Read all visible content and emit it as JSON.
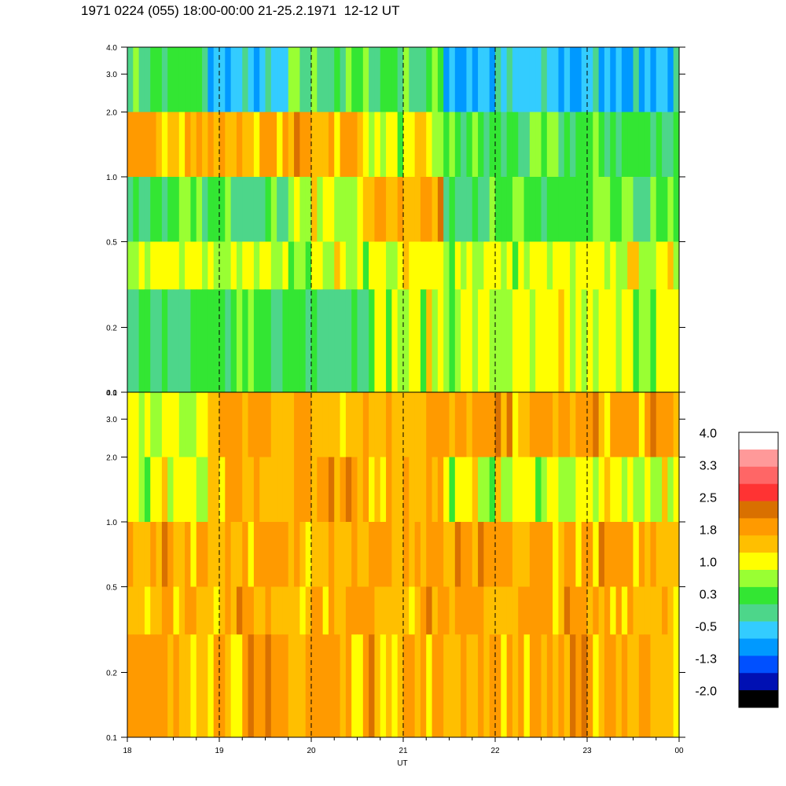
{
  "title": "1971 0224 (055) 18:00-00:00 21-25.2.1971  12-12 UT",
  "chart_data": {
    "type": "heatmap",
    "title": "1971 0224 (055) 18:00-00:00 21-25.2.1971  12-12 UT",
    "xlabel": "UT",
    "x_ticks": [
      "18",
      "19",
      "20",
      "21",
      "22",
      "23",
      "00"
    ],
    "x_range_hours": [
      18,
      24
    ],
    "dashed_gridlines_at_hours": [
      19,
      20,
      21,
      22,
      23
    ],
    "y_scale": "log",
    "y_range": [
      0.1,
      4.0
    ],
    "y_ticks": [
      "0.1",
      "0.2",
      "0.5",
      "1.0",
      "2.0",
      "3.0",
      "4.0"
    ],
    "y_tick_values": [
      0.1,
      0.2,
      0.5,
      1.0,
      2.0,
      3.0,
      4.0
    ],
    "panels": [
      {
        "position": "top",
        "bands": [
          {
            "y_range": [
              2.0,
              4.0
            ],
            "level_by_hour": [
              0.3,
              -0.5,
              0.3,
              0.3,
              -0.5,
              -0.5,
              -0.5
            ]
          },
          {
            "y_range": [
              1.0,
              2.0
            ],
            "level_by_hour": [
              1.8,
              1.8,
              1.8,
              1.0,
              0.3,
              0.3,
              0.3
            ]
          },
          {
            "y_range": [
              0.5,
              1.0
            ],
            "level_by_hour": [
              0.3,
              0.3,
              1.0,
              1.8,
              0.3,
              0.3,
              0.3
            ]
          },
          {
            "y_range": [
              0.3,
              0.5
            ],
            "level_by_hour": [
              1.0,
              1.0,
              1.0,
              1.0,
              1.0,
              1.0,
              1.0
            ]
          },
          {
            "y_range": [
              0.1,
              0.3
            ],
            "level_by_hour": [
              0.3,
              0.3,
              0.3,
              1.0,
              1.0,
              1.0,
              1.0
            ]
          }
        ]
      },
      {
        "position": "bottom",
        "bands": [
          {
            "y_range": [
              2.0,
              4.0
            ],
            "level_by_hour": [
              1.0,
              1.8,
              1.8,
              1.8,
              1.8,
              1.8,
              1.8
            ]
          },
          {
            "y_range": [
              1.0,
              2.0
            ],
            "level_by_hour": [
              1.0,
              1.8,
              1.8,
              1.8,
              1.0,
              1.0,
              1.0
            ]
          },
          {
            "y_range": [
              0.5,
              1.0
            ],
            "level_by_hour": [
              1.8,
              1.8,
              1.8,
              1.8,
              1.8,
              1.8,
              1.8
            ]
          },
          {
            "y_range": [
              0.3,
              0.5
            ],
            "level_by_hour": [
              1.8,
              1.8,
              1.8,
              1.8,
              1.8,
              1.8,
              1.8
            ]
          },
          {
            "y_range": [
              0.1,
              0.3
            ],
            "level_by_hour": [
              1.8,
              1.8,
              1.8,
              1.8,
              1.8,
              1.8,
              1.8
            ]
          }
        ]
      }
    ],
    "colorbar": {
      "labels": [
        "4.0",
        "3.3",
        "2.5",
        "1.8",
        "1.0",
        "0.3",
        "-0.5",
        "-1.3",
        "-2.0"
      ],
      "range": [
        -2.0,
        4.0
      ],
      "colors": [
        "#ffffff",
        "#ff9999",
        "#ff6666",
        "#ff3333",
        "#d97000",
        "#ff9a00",
        "#ffbf00",
        "#ffff00",
        "#99ff33",
        "#33e633",
        "#4dd68a",
        "#33ccff",
        "#0099ff",
        "#0050ff",
        "#0010b3",
        "#000000"
      ]
    }
  }
}
